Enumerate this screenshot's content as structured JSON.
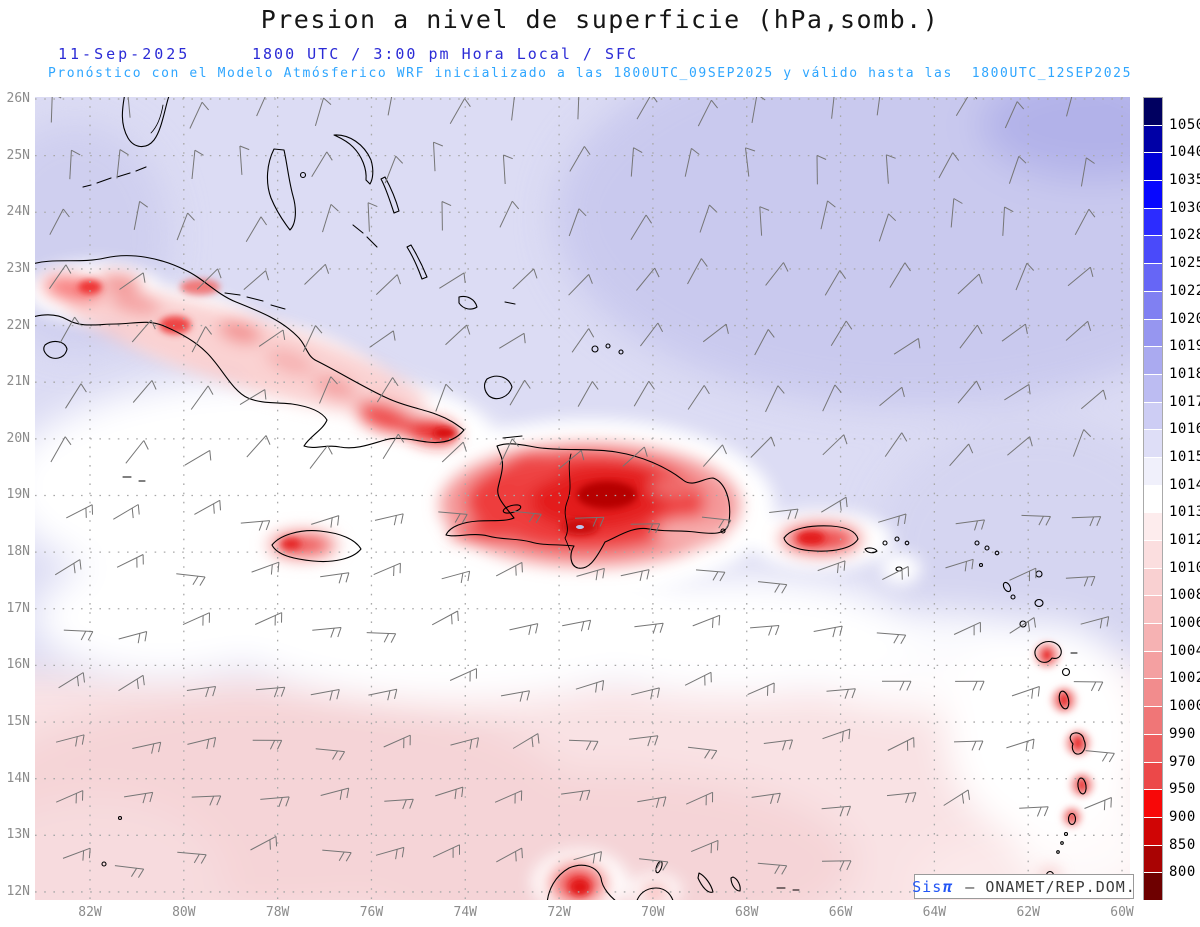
{
  "header": {
    "title": "Presion a nivel de superficie (hPa,somb.)",
    "valid_date": "11-Sep-2025",
    "valid_time": "1800 UTC / 3:00 pm Hora Local / SFC",
    "model_info": "Pronóstico con el Modelo Atmósferico WRF inicializado a las 1800UTC_09SEP2025 y válido hasta las  1800UTC_12SEP2025"
  },
  "axes": {
    "lat_labels": [
      "26N",
      "25N",
      "24N",
      "23N",
      "22N",
      "21N",
      "20N",
      "19N",
      "18N",
      "17N",
      "16N",
      "15N",
      "14N",
      "13N",
      "12N"
    ],
    "lon_labels": [
      "82W",
      "80W",
      "78W",
      "76W",
      "74W",
      "72W",
      "70W",
      "68W",
      "66W",
      "64W",
      "62W",
      "60W"
    ]
  },
  "colorbar": {
    "units": "hPa",
    "tick_labels": [
      "1050",
      "1040",
      "1035",
      "1030",
      "1028",
      "1025",
      "1022",
      "1020",
      "1019",
      "1018",
      "1017",
      "1016",
      "1015",
      "1014",
      "1013",
      "1012",
      "1010",
      "1008",
      "1006",
      "1004",
      "1002",
      "1000",
      "990",
      "970",
      "950",
      "900",
      "850",
      "800"
    ],
    "segment_colors": [
      "#000060",
      "#0000a6",
      "#0000d8",
      "#0707ff",
      "#2c2cff",
      "#4a4afa",
      "#6666f6",
      "#8080f2",
      "#9696f0",
      "#aaaaf0",
      "#bcbcf2",
      "#cdcdf4",
      "#dedef7",
      "#f0f0fb",
      "#ffffff",
      "#fdeced",
      "#fbdedf",
      "#f9d0d1",
      "#f8c2c3",
      "#f6b2b3",
      "#f4a0a1",
      "#f28c8d",
      "#f07677",
      "#ee6061",
      "#ec4849",
      "#f80808",
      "#d00505",
      "#a90303",
      "#6e0000"
    ]
  },
  "credit": {
    "brand": "Sis",
    "pi": "π",
    "suffix": "– ONAMET/REP.DOM."
  },
  "palette": {
    "heading_blue": "#2b2bd6",
    "model_cyan": "#2fa6ff",
    "axis_gray": "#8c8c8c",
    "credit_blue": "#2356f5",
    "sea_base": "#dcdcf4",
    "high_pressure_blue": "#c9c9ee",
    "low_pressure_pink": "#f9e2e4",
    "land_hot_red": "#e31f1f",
    "coastline": "#000000",
    "wind_barb_gray": "#757575",
    "grid_dot_gray": "#a8a8a8"
  }
}
